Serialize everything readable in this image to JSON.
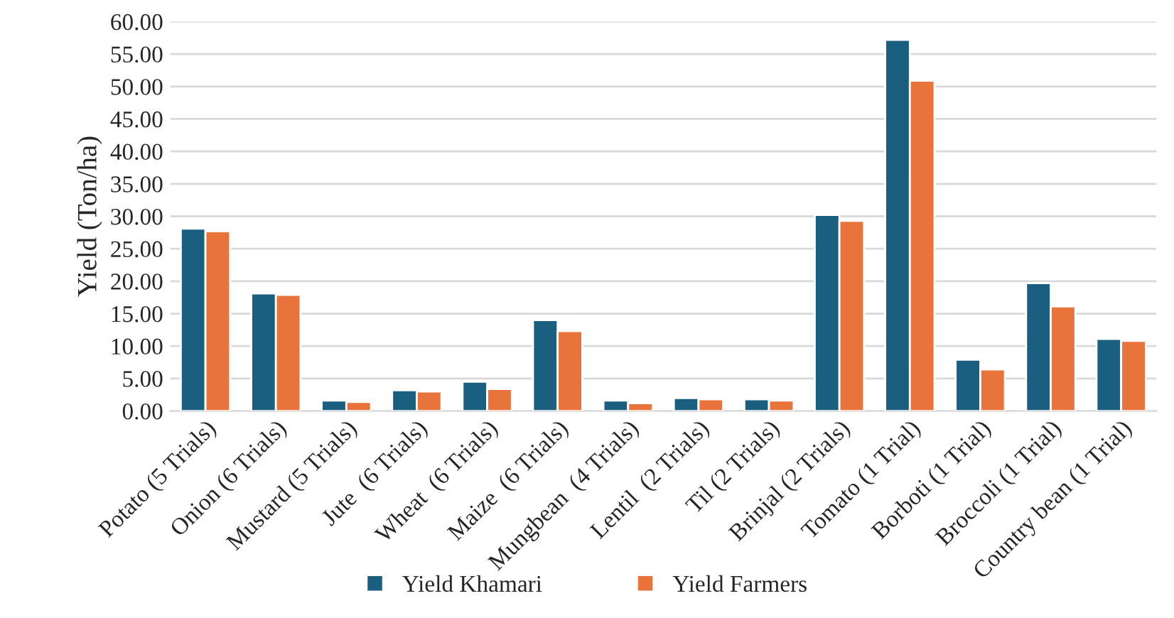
{
  "chart_data": {
    "type": "bar",
    "ylabel": "Yield (Ton/ha)",
    "categories": [
      "Potato (5 Trials)",
      "Onion (6 Trials)",
      "Mustard (5 Trials)",
      "Jute  (6 Trials)",
      "Wheat  (6 Trials)",
      "Maize  (6 Trials)",
      "Mungbean  (4 Trials)",
      "Lentil  (2 Trials)",
      "Til (2 Trials)",
      "Brinjal (2 Trials)",
      "Tomato (1 Trial)",
      "Borboti (1 Trial)",
      "Broccoli (1 Trial)",
      "Country bean (1 Trial)"
    ],
    "series": [
      {
        "name": "Yield Khamari",
        "color": "#1a5f80",
        "values": [
          28.1,
          18.1,
          1.6,
          3.2,
          4.5,
          14.0,
          1.6,
          2.0,
          1.8,
          30.2,
          57.2,
          7.9,
          19.7,
          11.1
        ]
      },
      {
        "name": "Yield Farmers",
        "color": "#e8743b",
        "values": [
          27.7,
          17.9,
          1.4,
          3.0,
          3.4,
          12.3,
          1.2,
          1.8,
          1.6,
          29.3,
          50.9,
          6.4,
          16.1,
          10.8
        ]
      }
    ],
    "ylim": [
      0,
      60
    ],
    "yticks": [
      {
        "value": 0,
        "label": "0.00"
      },
      {
        "value": 5,
        "label": "5.00"
      },
      {
        "value": 10,
        "label": "10.00"
      },
      {
        "value": 15,
        "label": "15.00"
      },
      {
        "value": 20,
        "label": "20.00"
      },
      {
        "value": 25,
        "label": "25.00"
      },
      {
        "value": 30,
        "label": "30.00"
      },
      {
        "value": 35,
        "label": "35.00"
      },
      {
        "value": 40,
        "label": "40.00"
      },
      {
        "value": 45,
        "label": "45.00"
      },
      {
        "value": 50,
        "label": "50.00"
      },
      {
        "value": 55,
        "label": "55.00"
      },
      {
        "value": 60,
        "label": "60.00"
      }
    ],
    "grid": "y",
    "legend": "bottom"
  }
}
